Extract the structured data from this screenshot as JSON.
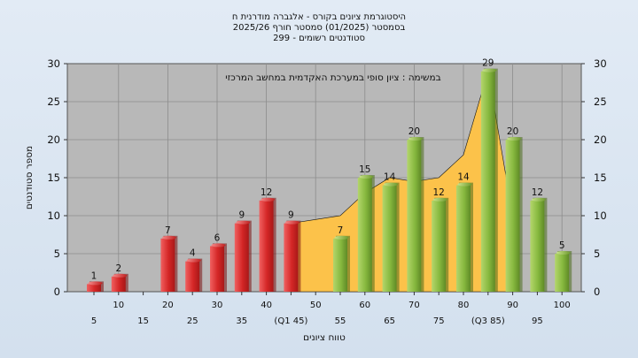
{
  "chart_data": {
    "type": "bar",
    "title": [
      "היסטוגרמת ציונים בקורס - אלגברה מודרנית ח",
      "בסמסטר  (01/2025)  סמסטר חורף 2025/26",
      "סטודנטים רשומים - 299"
    ],
    "annotation": "במשימה : ציון סופי במערכת האקדמית במחשב המרכזי",
    "ylabel": "מספר סטודנטים",
    "xlabel": "טווח ציונים",
    "ylim": [
      0,
      30
    ],
    "yticks": [
      0,
      5,
      10,
      15,
      20,
      25,
      30
    ],
    "grid": true,
    "x_tick_labels": [
      {
        "label": "5",
        "row": 2
      },
      {
        "label": "10",
        "row": 1
      },
      {
        "label": "15",
        "row": 2
      },
      {
        "label": "20",
        "row": 1
      },
      {
        "label": "25",
        "row": 2
      },
      {
        "label": "30",
        "row": 1
      },
      {
        "label": "35",
        "row": 2
      },
      {
        "label": "40",
        "row": 1
      },
      {
        "label": "(Q1 45)",
        "row": 2
      },
      {
        "label": "50",
        "row": 1
      },
      {
        "label": "55",
        "row": 2
      },
      {
        "label": "60",
        "row": 1
      },
      {
        "label": "65",
        "row": 2
      },
      {
        "label": "70",
        "row": 1
      },
      {
        "label": "75",
        "row": 2
      },
      {
        "label": "80",
        "row": 1
      },
      {
        "label": "(Q3 85)",
        "row": 2
      },
      {
        "label": "90",
        "row": 1
      },
      {
        "label": "95",
        "row": 2
      },
      {
        "label": "100",
        "row": 1
      }
    ],
    "categories": [
      "5",
      "10",
      "15",
      "20",
      "25",
      "30",
      "35",
      "40",
      "45",
      "50",
      "55",
      "60",
      "65",
      "70",
      "75",
      "80",
      "85",
      "90",
      "95",
      "100"
    ],
    "values": [
      1,
      2,
      0,
      7,
      4,
      6,
      9,
      12,
      9,
      0,
      7,
      15,
      14,
      20,
      12,
      14,
      29,
      20,
      12,
      5
    ],
    "value_labels": [
      "1",
      "2",
      "",
      "7",
      "4",
      "6",
      "9",
      "12",
      "9",
      "",
      "7",
      "15",
      "14",
      "20",
      "12",
      "14",
      "29",
      "20",
      "12",
      "5"
    ],
    "series_colors": [
      "red",
      "red",
      "red",
      "red",
      "red",
      "red",
      "red",
      "red",
      "red",
      "red",
      "green",
      "green",
      "green",
      "green",
      "green",
      "green",
      "green",
      "green",
      "green",
      "green"
    ],
    "area": {
      "categories": [
        "45",
        "50",
        "55",
        "60",
        "65",
        "70",
        "75",
        "80",
        "85",
        "90"
      ],
      "values": [
        9,
        9.5,
        10,
        13,
        15,
        14.5,
        15,
        18,
        29,
        10
      ]
    },
    "colors": {
      "fail_bar": "#dc2828",
      "pass_bar": "#8cbc44",
      "area": "#fcc24a",
      "plot_bg": "#b8b8b8"
    }
  }
}
